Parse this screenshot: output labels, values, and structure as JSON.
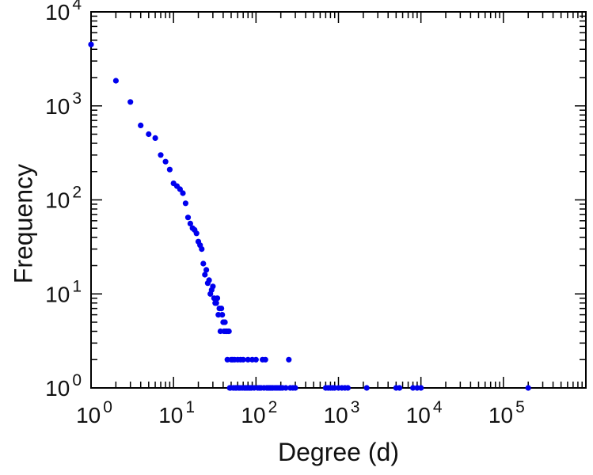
{
  "chart_data": {
    "type": "scatter",
    "title": "",
    "xlabel": "Degree (d)",
    "ylabel": "Frequency",
    "x_scale": "log",
    "y_scale": "log",
    "xlim": [
      1,
      1000000
    ],
    "ylim": [
      1,
      10000
    ],
    "x_tick_exponents": [
      0,
      1,
      2,
      3,
      4,
      5
    ],
    "y_tick_exponents": [
      0,
      1,
      2,
      3,
      4
    ],
    "grid": false,
    "legend": false,
    "marker_color": "#0000ee",
    "frame_color": "#000000",
    "text_color": "#111111",
    "points": [
      [
        1,
        4500
      ],
      [
        2,
        1850
      ],
      [
        3,
        1100
      ],
      [
        4,
        620
      ],
      [
        5,
        500
      ],
      [
        6,
        455
      ],
      [
        7,
        300
      ],
      [
        8,
        255
      ],
      [
        9,
        210
      ],
      [
        10,
        150
      ],
      [
        11,
        140
      ],
      [
        12,
        130
      ],
      [
        13,
        118
      ],
      [
        14,
        92
      ],
      [
        15,
        65
      ],
      [
        16,
        56
      ],
      [
        17,
        50
      ],
      [
        18,
        48
      ],
      [
        19,
        44
      ],
      [
        20,
        36
      ],
      [
        21,
        33
      ],
      [
        22,
        30
      ],
      [
        23,
        21
      ],
      [
        24,
        16
      ],
      [
        25,
        18
      ],
      [
        26,
        13
      ],
      [
        27,
        14
      ],
      [
        28,
        10
      ],
      [
        29,
        11
      ],
      [
        30,
        12
      ],
      [
        31,
        9
      ],
      [
        32,
        8
      ],
      [
        33,
        8
      ],
      [
        34,
        9
      ],
      [
        35,
        6
      ],
      [
        36,
        7
      ],
      [
        37,
        4
      ],
      [
        38,
        7
      ],
      [
        39,
        6
      ],
      [
        40,
        5
      ],
      [
        41,
        4
      ],
      [
        42,
        5
      ],
      [
        43,
        4
      ],
      [
        44,
        4
      ],
      [
        45,
        2
      ],
      [
        46,
        4
      ],
      [
        47,
        4
      ],
      [
        48,
        1
      ],
      [
        49,
        1
      ],
      [
        50,
        2
      ],
      [
        52,
        2
      ],
      [
        53,
        1
      ],
      [
        55,
        2
      ],
      [
        56,
        1
      ],
      [
        58,
        1
      ],
      [
        60,
        2
      ],
      [
        62,
        1
      ],
      [
        64,
        1
      ],
      [
        65,
        2
      ],
      [
        68,
        1
      ],
      [
        70,
        2
      ],
      [
        72,
        1
      ],
      [
        75,
        1
      ],
      [
        78,
        1
      ],
      [
        80,
        2
      ],
      [
        82,
        1
      ],
      [
        85,
        1
      ],
      [
        88,
        1
      ],
      [
        90,
        2
      ],
      [
        95,
        1
      ],
      [
        100,
        2
      ],
      [
        105,
        1
      ],
      [
        110,
        1
      ],
      [
        115,
        1
      ],
      [
        120,
        2
      ],
      [
        125,
        1
      ],
      [
        130,
        2
      ],
      [
        135,
        1
      ],
      [
        140,
        1
      ],
      [
        145,
        1
      ],
      [
        150,
        1
      ],
      [
        155,
        1
      ],
      [
        160,
        1
      ],
      [
        170,
        1
      ],
      [
        180,
        1
      ],
      [
        190,
        1
      ],
      [
        200,
        1
      ],
      [
        210,
        1
      ],
      [
        230,
        1
      ],
      [
        250,
        2
      ],
      [
        260,
        1
      ],
      [
        280,
        1
      ],
      [
        300,
        1
      ],
      [
        700,
        1
      ],
      [
        750,
        1
      ],
      [
        800,
        1
      ],
      [
        850,
        1
      ],
      [
        900,
        1
      ],
      [
        1000,
        1
      ],
      [
        1100,
        1
      ],
      [
        1200,
        1
      ],
      [
        1300,
        1
      ],
      [
        2200,
        1
      ],
      [
        5000,
        1
      ],
      [
        5500,
        1
      ],
      [
        8000,
        1
      ],
      [
        9000,
        1
      ],
      [
        10000,
        1
      ],
      [
        200000,
        1
      ]
    ]
  }
}
